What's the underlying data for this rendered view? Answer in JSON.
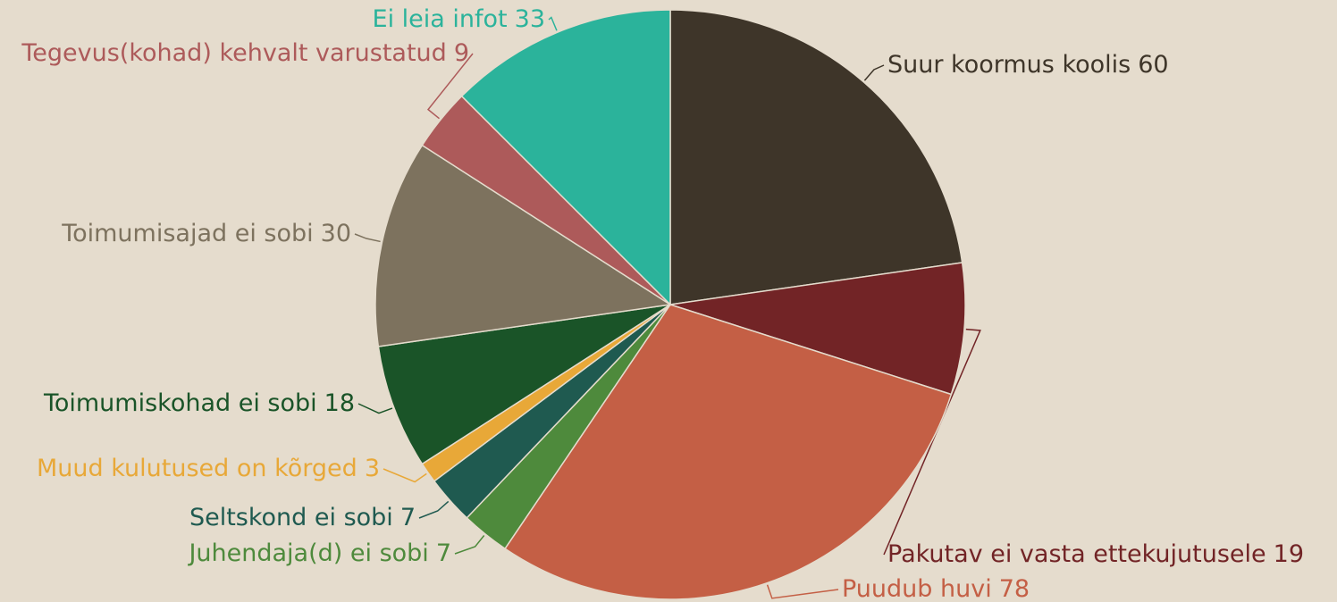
{
  "chart_data": {
    "type": "pie",
    "categories": [
      "Suur koormus koolis",
      "Pakutav ei vasta ettekujutusele",
      "Puudub huvi",
      "Juhendaja(d) ei sobi",
      "Seltskond ei sobi",
      "Muud kulutused on kõrged",
      "Toimumiskohad ei sobi",
      "Toimumisajad ei sobi",
      "Tegevus(kohad) kehvalt varustatud",
      "Ei leia infot"
    ],
    "values": [
      60,
      19,
      78,
      7,
      7,
      3,
      18,
      30,
      9,
      33
    ],
    "colors": [
      "#3e3529",
      "#722426",
      "#c45f45",
      "#4e8a3c",
      "#1f5a50",
      "#e8a838",
      "#1a5428",
      "#7d725e",
      "#ad5a5a",
      "#2bb39b"
    ]
  }
}
